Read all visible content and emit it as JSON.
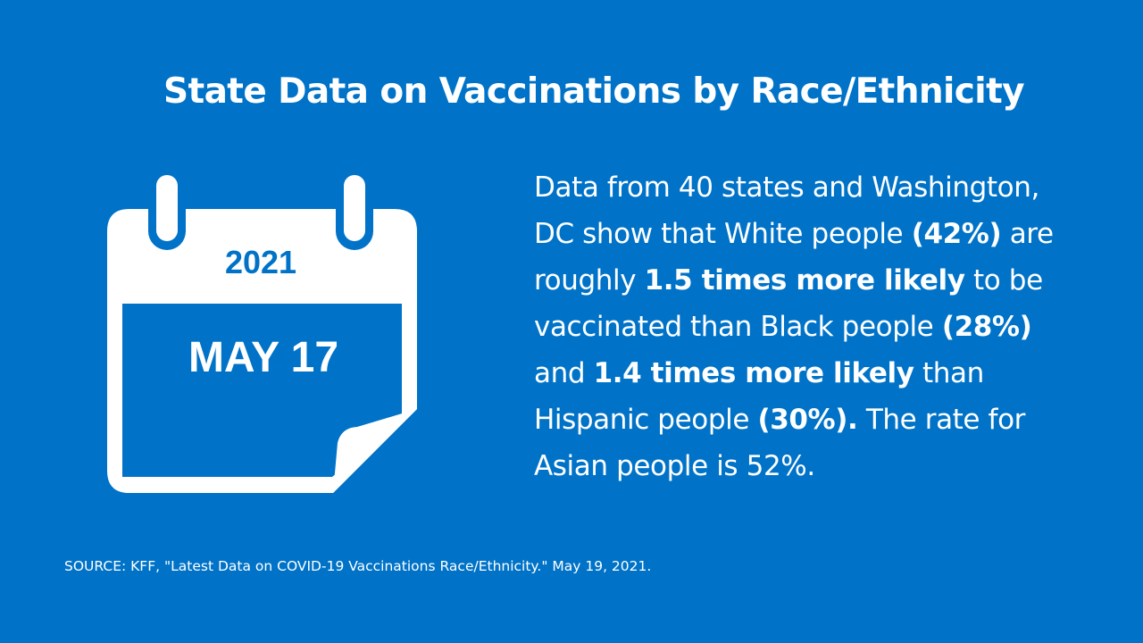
{
  "title": "State Data on Vaccinations by Race/Ethnicity",
  "calendar": {
    "year": "2021",
    "date": "MAY 17",
    "icon": "calendar-icon"
  },
  "body": {
    "t1": "Data from 40 states and Washington, DC show that White people ",
    "b1": "(42%)",
    "t2": " are roughly ",
    "b2": "1.5 times more likely",
    "t3": " to be vaccinated than Black people ",
    "b3": "(28%)",
    "t4": " and ",
    "b4": "1.4 times more likely",
    "t5": " than Hispanic people ",
    "b5": "(30%).",
    "t6": " The rate for Asian people is 52%."
  },
  "source": "SOURCE: KFF, \"Latest Data on COVID-19 Vaccinations Race/Ethnicity.\" May 19, 2021.",
  "colors": {
    "background": "#0073c8",
    "foreground": "#ffffff"
  }
}
